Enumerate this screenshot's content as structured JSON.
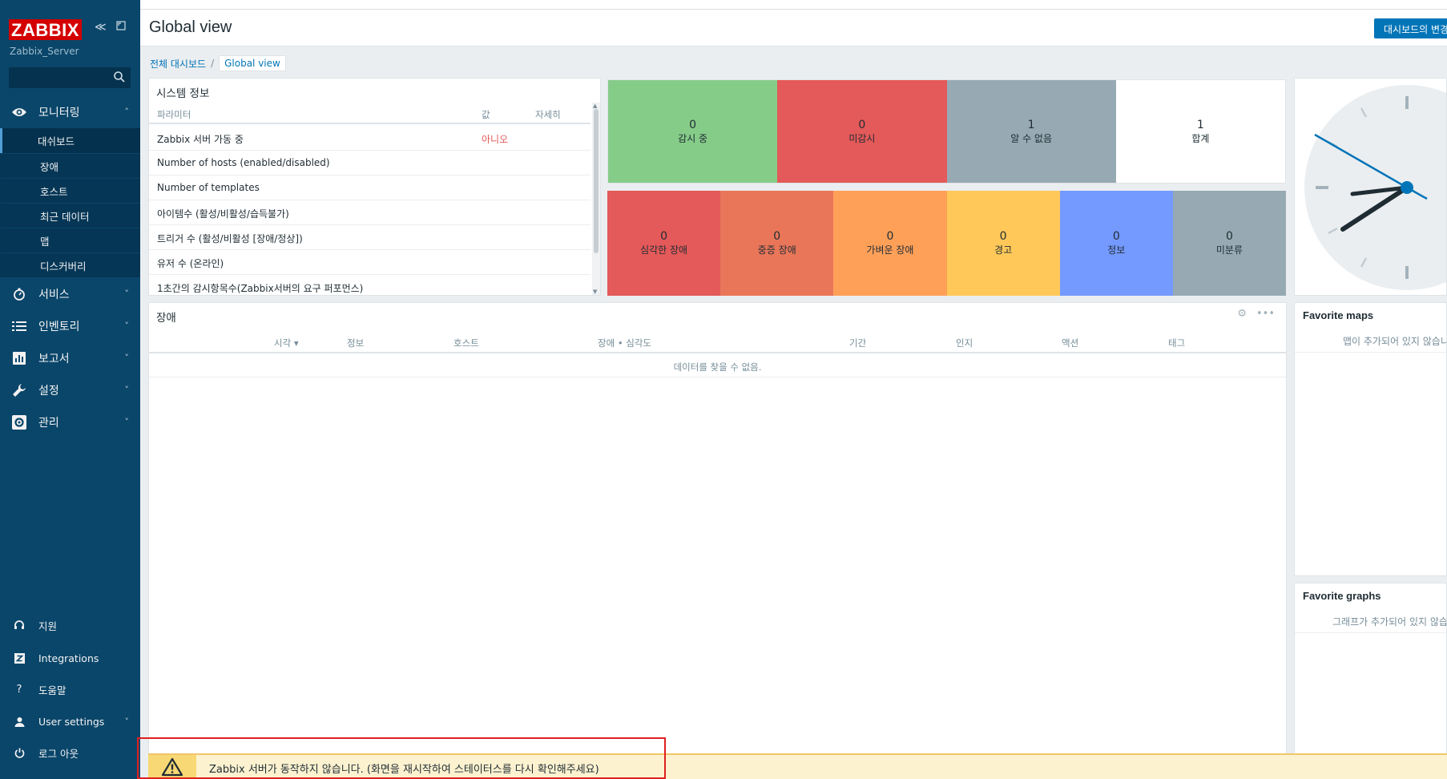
{
  "app": {
    "logo": "ZABBIX",
    "server_name": "Zabbix_Server",
    "search_placeholder": ""
  },
  "nav": {
    "monitoring": {
      "label": "모니터링",
      "items": [
        "대쉬보드",
        "장애",
        "호스트",
        "최근 데이터",
        "맵",
        "디스커버리"
      ]
    },
    "services": "서비스",
    "inventory": "인벤토리",
    "reports": "보고서",
    "config": "설정",
    "admin": "관리",
    "bottom": {
      "support": "지원",
      "integrations": "Integrations",
      "help": "도움말",
      "user_settings": "User settings",
      "logout": "로그 아웃"
    }
  },
  "header": {
    "title": "Global view",
    "edit_button": "대시보드의 변경"
  },
  "breadcrumb": {
    "root": "전체 대시보드",
    "current": "Global view"
  },
  "sysinfo": {
    "title": "시스템 정보",
    "columns": [
      "파라미터",
      "값",
      "자세히"
    ],
    "rows": [
      {
        "param": "Zabbix 서버 가동 중",
        "value": "아니오"
      },
      {
        "param": "Number of hosts (enabled/disabled)",
        "value": ""
      },
      {
        "param": "Number of templates",
        "value": ""
      },
      {
        "param": "아이템수 (활성/비활성/습득불가)",
        "value": ""
      },
      {
        "param": "트리거 수 (활성/비활성 [장애/정상])",
        "value": ""
      },
      {
        "param": "유저 수 (온라인)",
        "value": ""
      },
      {
        "param": "1초간의 감시항목수(Zabbix서버의 요구 퍼포먼스)",
        "value": ""
      }
    ]
  },
  "host_availability": [
    {
      "count": "0",
      "label": "감시 중",
      "color": "#86cc89"
    },
    {
      "count": "0",
      "label": "미감시",
      "color": "#e45959"
    },
    {
      "count": "1",
      "label": "알 수 없음",
      "color": "#97aab3"
    },
    {
      "count": "1",
      "label": "합계",
      "color": "#ffffff"
    }
  ],
  "severity": [
    {
      "count": "0",
      "label": "심각한 장애",
      "color": "#e45959"
    },
    {
      "count": "0",
      "label": "중증 장애",
      "color": "#e97659"
    },
    {
      "count": "0",
      "label": "가벼운 장애",
      "color": "#ffa059"
    },
    {
      "count": "0",
      "label": "경고",
      "color": "#ffc859"
    },
    {
      "count": "0",
      "label": "정보",
      "color": "#7499ff"
    },
    {
      "count": "0",
      "label": "미분류",
      "color": "#97aab3"
    }
  ],
  "problems": {
    "title": "장애",
    "columns": [
      "시각 ▾",
      "정보",
      "호스트",
      "장애 • 심각도",
      "기간",
      "인지",
      "액션",
      "태그"
    ],
    "empty": "데이터를 찾을 수 없음."
  },
  "favorite_maps": {
    "title": "Favorite maps",
    "empty": "맵이 추가되어 있지 않습니다"
  },
  "favorite_graphs": {
    "title": "Favorite graphs",
    "empty": "그래프가 추가되어 있지 않습니다"
  },
  "warning": {
    "text": "Zabbix 서버가 동작하지 않습니다. (화면을 재시작하여 스테이터스를 다시 확인해주세요)"
  },
  "colors": {
    "sidebar": "#0a466a",
    "accent": "#0275b8",
    "logo_red": "#d40000",
    "error_text": "#e45959"
  }
}
